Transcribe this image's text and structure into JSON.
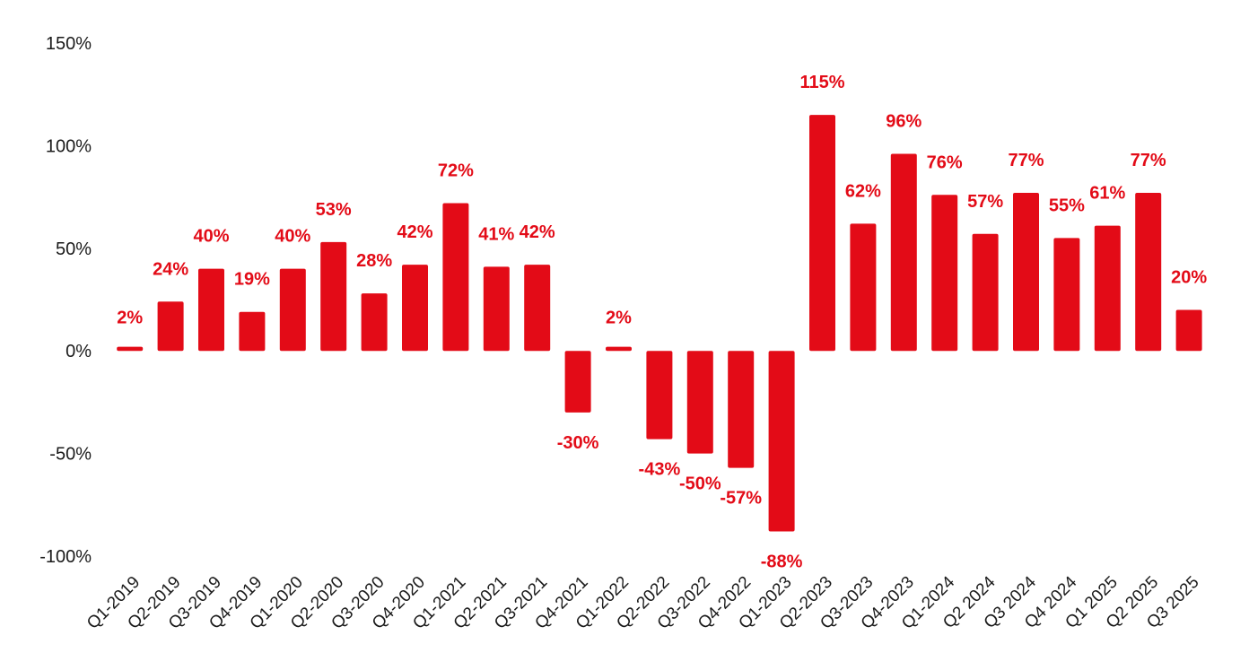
{
  "chart_data": {
    "type": "bar",
    "title": "",
    "xlabel": "",
    "ylabel": "",
    "ylim": [
      -100,
      150
    ],
    "yticks": [
      -100,
      -50,
      0,
      50,
      100,
      150
    ],
    "ytick_labels": [
      "-100%",
      "-50%",
      "0%",
      "50%",
      "100%",
      "150%"
    ],
    "grid": false,
    "legend": "none",
    "bar_color": "#e30b17",
    "label_color": "#e30b17",
    "categories": [
      "Q1-2019",
      "Q2-2019",
      "Q3-2019",
      "Q4-2019",
      "Q1-2020",
      "Q2-2020",
      "Q3-2020",
      "Q4-2020",
      "Q1-2021",
      "Q2-2021",
      "Q3-2021",
      "Q4-2021",
      "Q1-2022",
      "Q2-2022",
      "Q3-2022",
      "Q4-2022",
      "Q1-2023",
      "Q2-2023",
      "Q3-2023",
      "Q4-2023",
      "Q1-2024",
      "Q2 2024",
      "Q3 2024",
      "Q4 2024",
      "Q1 2025",
      "Q2 2025",
      "Q3 2025"
    ],
    "values": [
      2,
      24,
      40,
      19,
      40,
      53,
      28,
      42,
      72,
      41,
      42,
      -30,
      2,
      -43,
      -50,
      -57,
      -88,
      115,
      62,
      96,
      76,
      57,
      77,
      55,
      61,
      77,
      20
    ],
    "data_labels": [
      "2%",
      "24%",
      "40%",
      "19%",
      "40%",
      "53%",
      "28%",
      "42%",
      "72%",
      "41%",
      "42%",
      "-30%",
      "2%",
      "-43%",
      "-50%",
      "-57%",
      "-88%",
      "115%",
      "62%",
      "96%",
      "76%",
      "57%",
      "77%",
      "55%",
      "61%",
      "77%",
      "20%"
    ]
  }
}
